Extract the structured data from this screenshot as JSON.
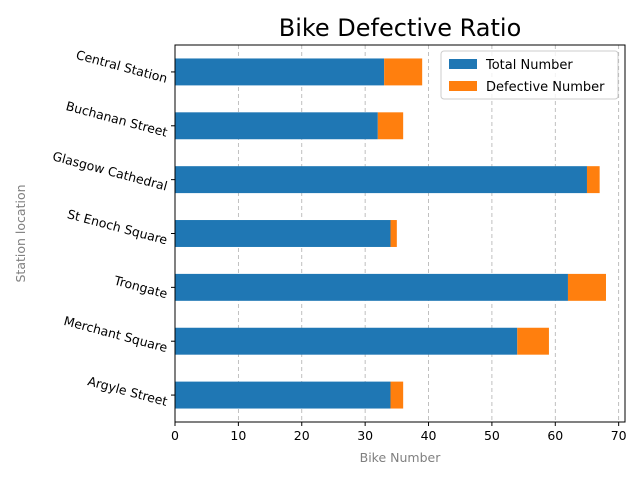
{
  "chart_data": {
    "type": "bar",
    "orientation": "horizontal",
    "stacked": true,
    "title": "Bike Defective Ratio",
    "xlabel": "Bike Number",
    "ylabel": "Station location",
    "xlim": [
      0,
      71
    ],
    "xticks": [
      0,
      10,
      20,
      30,
      40,
      50,
      60,
      70
    ],
    "grid": "x-dashed",
    "legend_position": "top-right",
    "categories": [
      "Central Station",
      "Buchanan Street",
      "Glasgow Cathedral",
      "St Enoch Square",
      "Trongate",
      "Merchant Square",
      "Argyle Street"
    ],
    "series": [
      {
        "name": "Total Number",
        "color": "#1f77b4",
        "values": [
          33,
          32,
          65,
          34,
          62,
          54,
          34
        ]
      },
      {
        "name": "Defective Number",
        "color": "#ff7f0e",
        "values": [
          6,
          4,
          2,
          1,
          6,
          5,
          2
        ]
      }
    ]
  }
}
